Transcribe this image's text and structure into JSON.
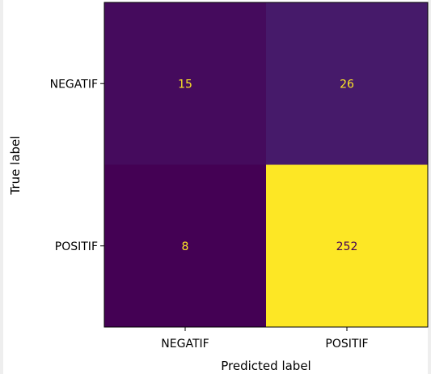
{
  "chart_data": {
    "type": "heatmap",
    "title": "",
    "xlabel": "Predicted label",
    "ylabel": "True label",
    "x_categories": [
      "NEGATIF",
      "POSITIF"
    ],
    "y_categories": [
      "NEGATIF",
      "POSITIF"
    ],
    "matrix": [
      [
        15,
        26
      ],
      [
        8,
        252
      ]
    ],
    "colormap": "viridis",
    "colors": {
      "low": "#440154",
      "high": "#fde725",
      "text_on_dark": "#fde725",
      "text_on_light": "#440154"
    },
    "grid": false
  }
}
